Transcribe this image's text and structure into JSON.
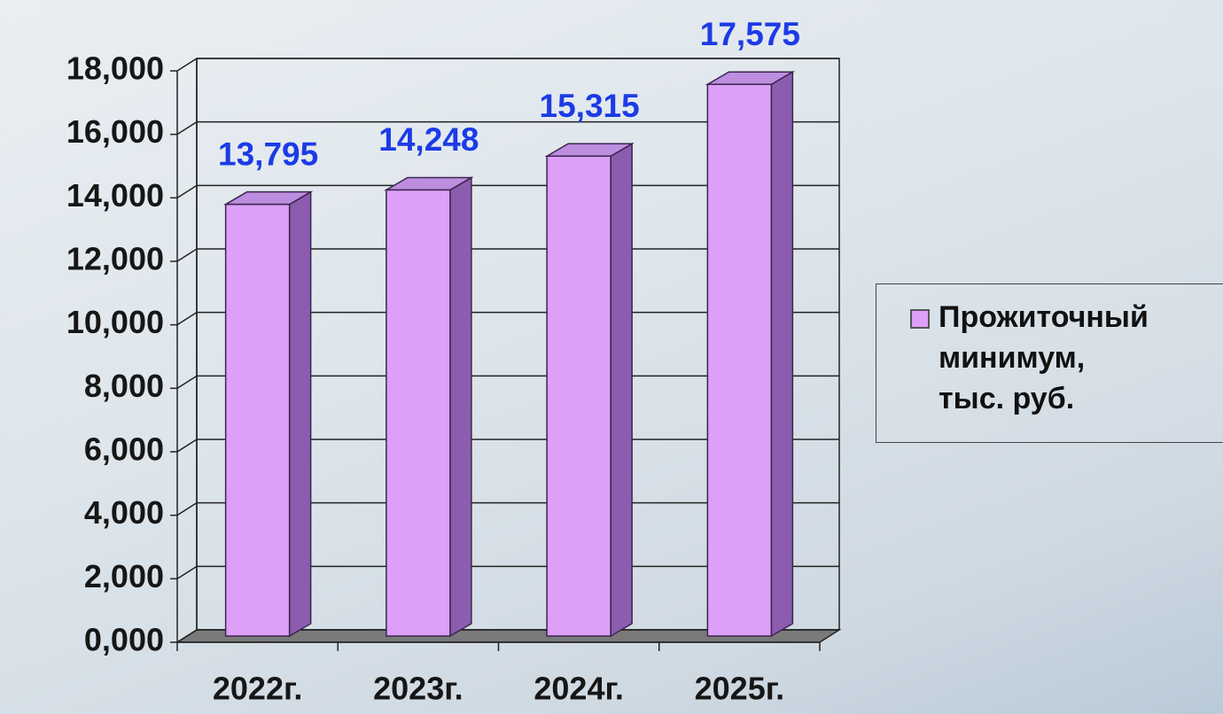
{
  "chart_data": {
    "type": "bar",
    "categories": [
      "2022г.",
      "2023г.",
      "2024г.",
      "2025г."
    ],
    "series": [
      {
        "name": "Прожиточный\nминимум,\nтыс. руб.",
        "color": "#dd9ff7",
        "values": [
          13.795,
          14.248,
          15.315,
          17.575
        ],
        "value_labels": [
          "13,795",
          "14,248",
          "15,315",
          "17,575"
        ]
      }
    ],
    "ylim": [
      0,
      18
    ],
    "yticks": [
      {
        "value": 0,
        "label": "0,000"
      },
      {
        "value": 2,
        "label": "2,000"
      },
      {
        "value": 4,
        "label": "4,000"
      },
      {
        "value": 6,
        "label": "6,000"
      },
      {
        "value": 8,
        "label": "8,000"
      },
      {
        "value": 10,
        "label": "10,000"
      },
      {
        "value": 12,
        "label": "12,000"
      },
      {
        "value": 14,
        "label": "14,000"
      },
      {
        "value": 16,
        "label": "16,000"
      },
      {
        "value": 18,
        "label": "18,000"
      }
    ],
    "grid": true,
    "legend": "right"
  }
}
